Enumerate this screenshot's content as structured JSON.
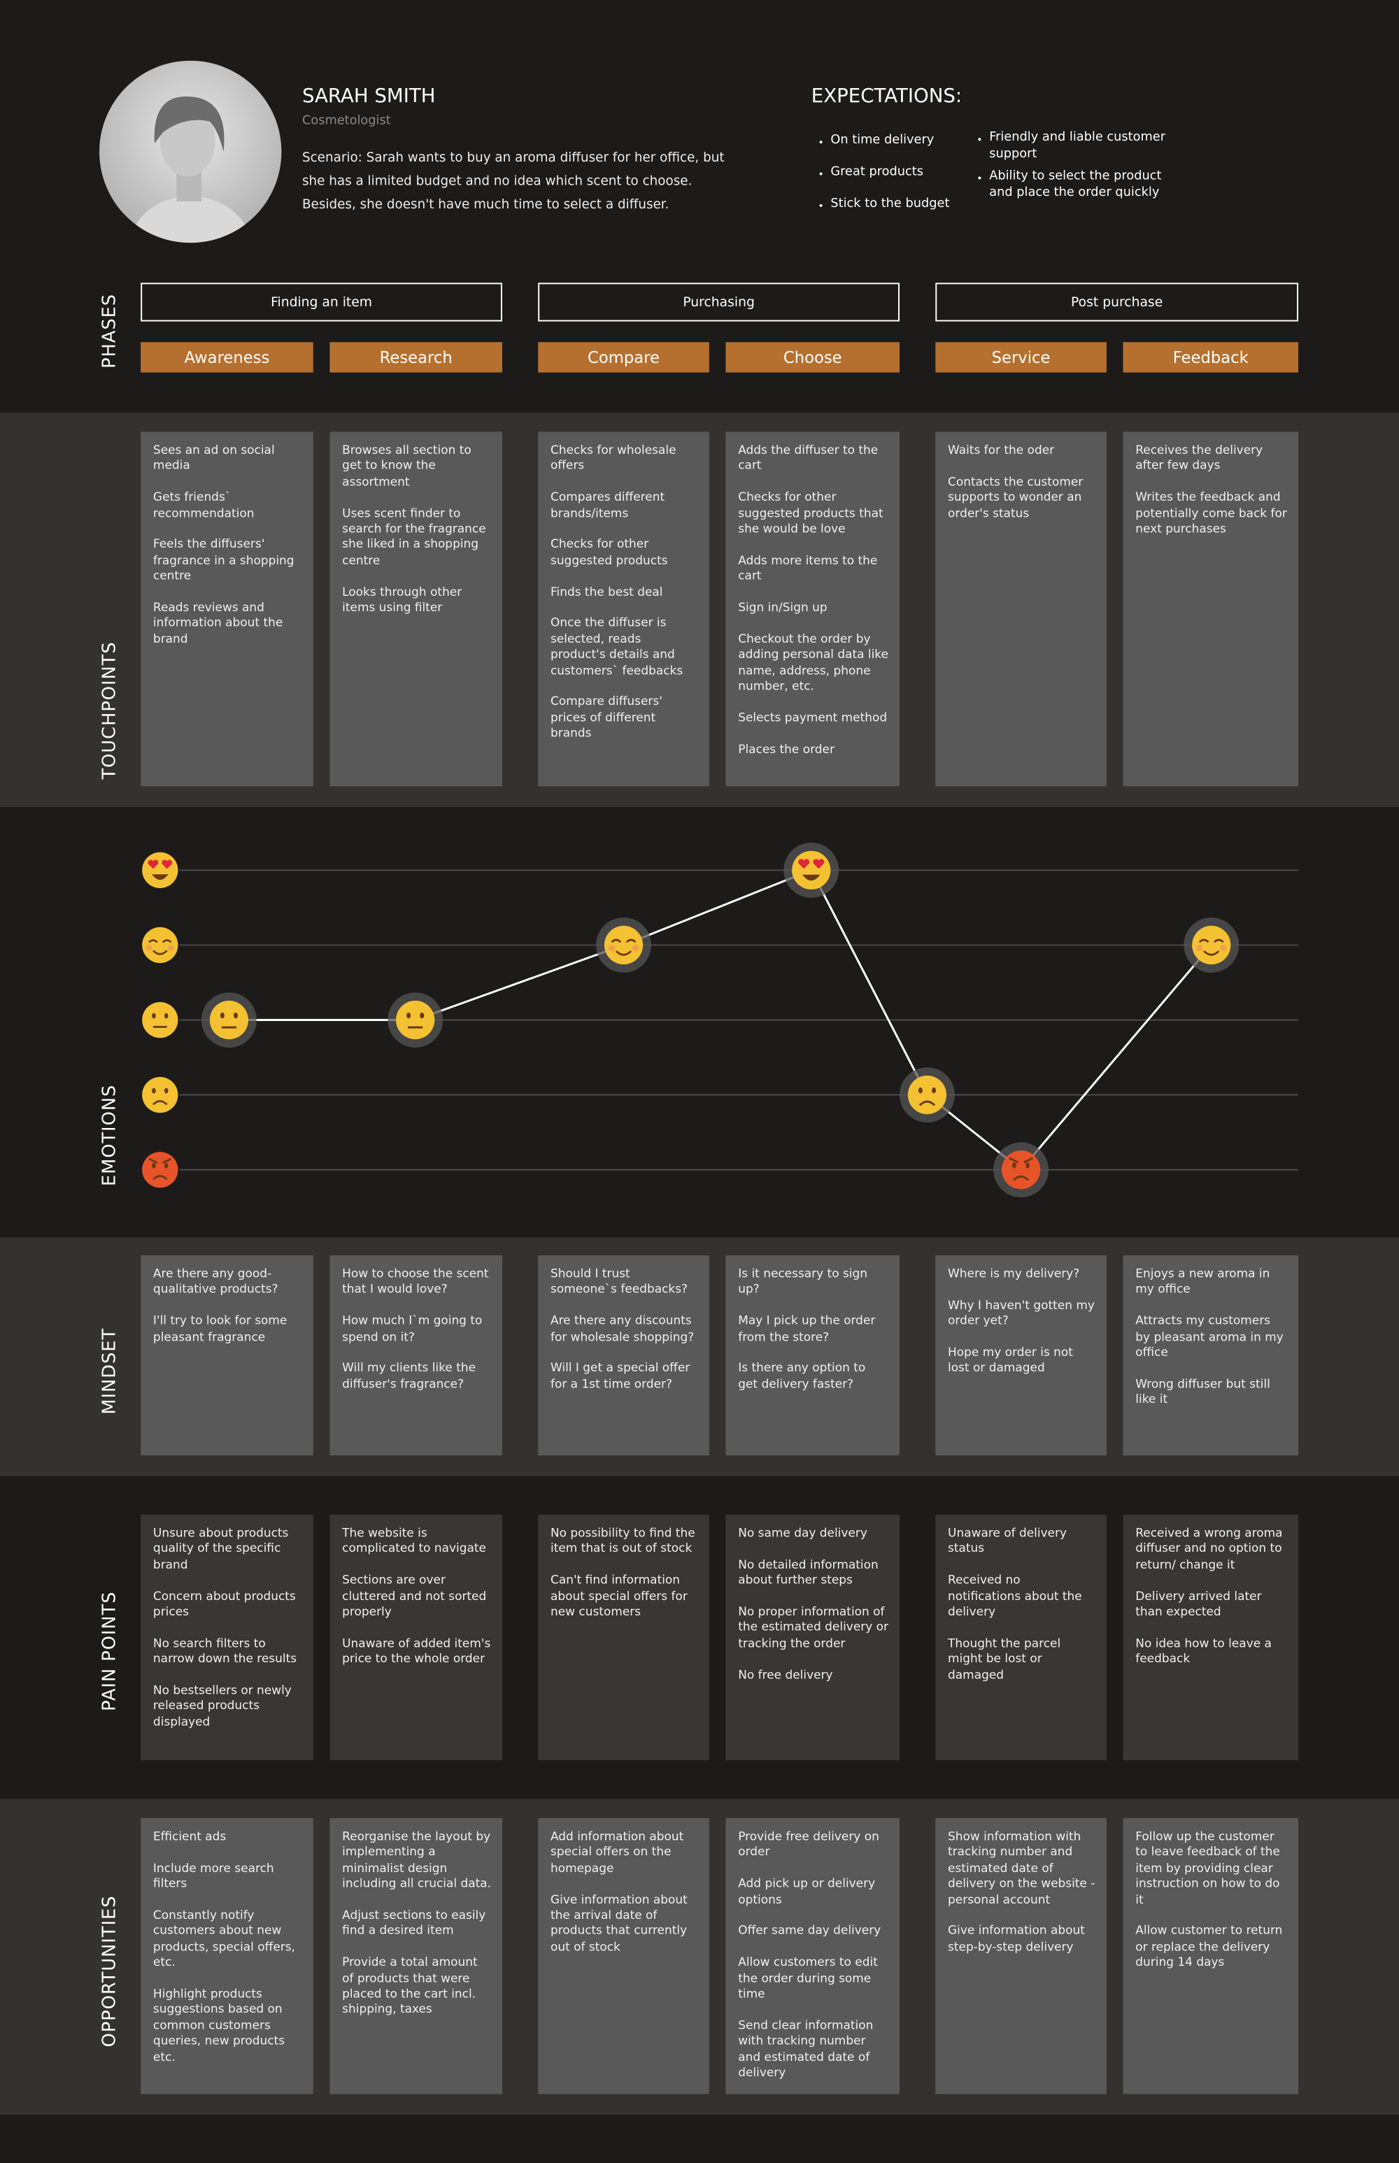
{
  "persona": {
    "name": "SARAH SMITH",
    "role": "Cosmetologist",
    "scenario": "Scenario: Sarah wants to buy an aroma diffuser for her office, but she has a limited budget and no idea which scent to choose. Besides, she doesn't have much time to select a diffuser."
  },
  "expectations": {
    "title": "EXPECTATIONS:",
    "items": [
      "On time delivery",
      "Great products",
      "Stick to the budget",
      "Friendly and liable customer support",
      "Ability to select the product and place the order quickly"
    ]
  },
  "phases": {
    "label": "PHASES",
    "groups": [
      "Finding an item",
      "Purchasing",
      "Post purchase"
    ],
    "stages": [
      "Awareness",
      "Research",
      "Compare",
      "Choose",
      "Service",
      "Feedback"
    ]
  },
  "emotions": {
    "label": "EMOTIONS",
    "points": [
      3,
      3,
      4,
      5,
      2,
      1,
      4
    ]
  },
  "rows": [
    {
      "label": "TOUCHPOINTS",
      "cells": [
        [
          "Sees an ad on social media",
          "Gets friends` recommendation",
          "Feels the diffusers' fragrance in a shopping centre",
          "Reads reviews and information about the brand"
        ],
        [
          "Browses all section to get to know the assortment",
          "Uses scent finder to search for the fragrance she liked in a shopping centre",
          "Looks through other items using filter"
        ],
        [
          "Checks for wholesale offers",
          "Compares different brands/items",
          "Checks for other suggested products",
          "Finds the best deal",
          "Once the diffuser is selected, reads product's details and customers` feedbacks",
          "Compare diffusers' prices of different brands"
        ],
        [
          "Adds the diffuser to the cart",
          "Checks for other suggested products that she would be love",
          "Adds more items to the cart",
          "Sign in/Sign up",
          "Checkout the order by adding personal data like name, address, phone number, etc.",
          "Selects payment method",
          "Places the order"
        ],
        [
          "Waits for the oder",
          "Contacts the customer supports to wonder an order's status"
        ],
        [
          "Receives the delivery after few days",
          "Writes the feedback and potentially come back for next purchases"
        ]
      ]
    },
    {
      "label": "MINDSET",
      "cells": [
        [
          "Are there any good-qualitative products?",
          "I'll try to look for some pleasant fragrance"
        ],
        [
          "How to choose the scent that I would love?",
          "How much I`m going to spend on it?",
          "Will my clients like the diffuser's fragrance?"
        ],
        [
          "Should I trust someone`s feedbacks?",
          "Are there any discounts for wholesale shopping?",
          "Will I get a special offer for a 1st time order?"
        ],
        [
          "Is it necessary to sign up?",
          "May I pick up the order from the store?",
          "Is there any option to get delivery faster?"
        ],
        [
          "Where is my delivery?",
          "Why I haven't gotten my order yet?",
          "Hope my order is not lost or damaged"
        ],
        [
          "Enjoys a new aroma in my office",
          "Attracts my customers by pleasant aroma in my office",
          "Wrong diffuser but still like it"
        ]
      ]
    },
    {
      "label": "PAIN POINTS",
      "cells": [
        [
          "Unsure about products quality of the specific brand",
          "Concern about products prices",
          "No search filters to narrow down the results",
          "No bestsellers or newly released products displayed"
        ],
        [
          "The website is complicated to navigate",
          "Sections are over cluttered and not sorted properly",
          "Unaware of added item's price to the whole order"
        ],
        [
          "No possibility to find the item that is out of stock",
          "Can't find information about special offers for new customers"
        ],
        [
          "No same day delivery",
          "No detailed information about further steps",
          "No proper information of the estimated delivery or tracking the order",
          "No free delivery"
        ],
        [
          "Unaware of delivery status",
          "Received no notifications about the delivery",
          "Thought the parcel might be lost or damaged"
        ],
        [
          "Received a wrong aroma diffuser and no option to return/ change it",
          "Delivery arrived later than expected",
          "No idea how to leave a feedback"
        ]
      ]
    },
    {
      "label": "OPPORTUNITIES",
      "cells": [
        [
          "Efficient ads",
          "Include more search filters",
          "Constantly notify customers about new products, special offers, etc.",
          "Highlight products suggestions based on common customers queries, new products etc."
        ],
        [
          "Reorganise the layout by implementing a minimalist design including all crucial data.",
          "Adjust sections to easily find a desired item",
          "Provide a total amount of products that were placed to the cart incl. shipping, taxes"
        ],
        [
          "Add information about special offers on the homepage",
          "Give information about the arrival date of products that currently out of stock"
        ],
        [
          "Provide free delivery on order",
          "Add pick up or delivery options",
          "Offer same day delivery",
          "Allow customers to edit the order during some time",
          "Send clear information with tracking number and estimated date of delivery"
        ],
        [
          "Show information with tracking number and estimated date of delivery on the website - personal account",
          "Give information about step-by-step delivery"
        ],
        [
          "Follow up the customer to leave feedback of the item by providing clear instruction on how to do it",
          "Allow customer to return or replace the delivery during 14 days"
        ]
      ]
    }
  ]
}
